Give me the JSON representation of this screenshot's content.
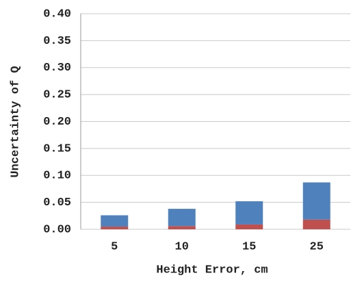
{
  "chart_data": {
    "type": "stacked_bar",
    "x_label": "Height Error, cm",
    "y_label": "Uncertainty of Q",
    "categories": [
      "5",
      "10",
      "15",
      "25"
    ],
    "series": [
      {
        "color": "#c0504d",
        "values": [
          0.005,
          0.006,
          0.009,
          0.018
        ]
      },
      {
        "color": "#4f81bd",
        "values": [
          0.021,
          0.032,
          0.043,
          0.069
        ]
      }
    ],
    "ylim": [
      0,
      0.4
    ],
    "yticks": [
      {
        "value": 0,
        "label": "0.00"
      },
      {
        "value": 0.05,
        "label": "0.05"
      },
      {
        "value": 0.1,
        "label": "0.10"
      },
      {
        "value": 0.15,
        "label": "0.15"
      },
      {
        "value": 0.2,
        "label": "0.20"
      },
      {
        "value": 0.25,
        "label": "0.25"
      },
      {
        "value": 0.3,
        "label": "0.30"
      },
      {
        "value": 0.35,
        "label": "0.35"
      },
      {
        "value": 0.4,
        "label": "0.40"
      }
    ],
    "grid": true
  }
}
